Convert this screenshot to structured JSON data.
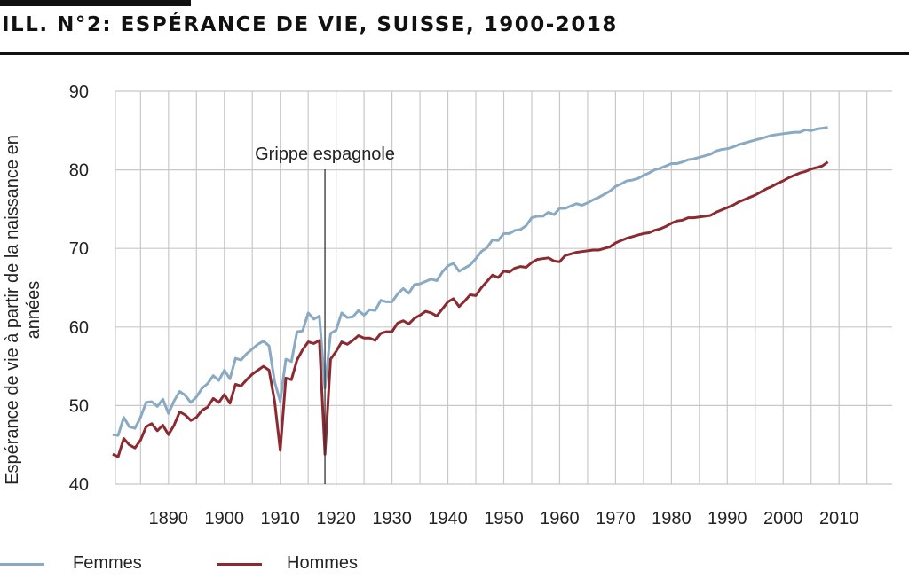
{
  "header": {
    "title": "ILL. N°2: ESPÉRANCE DE VIE, SUISSE, 1900-2018"
  },
  "colors": {
    "femmes": "#8aaac4",
    "hommes": "#8b2a31",
    "grid": "#c8c8c8",
    "annotation": "#333333"
  },
  "chart_data": {
    "type": "line",
    "title": "ILL. N°2: ESPÉRANCE DE VIE, SUISSE, 1900-2018",
    "xlabel": "",
    "ylabel": "Espérance de vie à partir de la naissance en années",
    "xlim": [
      1880.5,
      2019.5
    ],
    "ylim": [
      40,
      90
    ],
    "xticks": [
      1890,
      1900,
      1910,
      1920,
      1930,
      1940,
      1950,
      1960,
      1970,
      1980,
      1990,
      2000,
      2010
    ],
    "yticks": [
      40,
      50,
      60,
      70,
      80,
      90
    ],
    "grid": true,
    "legend_position": "bottom",
    "annotation": {
      "text": "Grippe espagnole",
      "x": 1918
    },
    "series": [
      {
        "name": "Femmes",
        "color": "#8aaac4",
        "points": [
          [
            1880,
            46.3
          ],
          [
            1881,
            46.2
          ],
          [
            1882,
            48.5
          ],
          [
            1883,
            47.3
          ],
          [
            1884,
            47.1
          ],
          [
            1885,
            48.5
          ],
          [
            1886,
            50.4
          ],
          [
            1887,
            50.5
          ],
          [
            1888,
            49.9
          ],
          [
            1889,
            50.8
          ],
          [
            1890,
            49.0
          ],
          [
            1891,
            50.6
          ],
          [
            1892,
            51.8
          ],
          [
            1893,
            51.3
          ],
          [
            1894,
            50.4
          ],
          [
            1895,
            51.1
          ],
          [
            1896,
            52.2
          ],
          [
            1897,
            52.8
          ],
          [
            1898,
            53.8
          ],
          [
            1899,
            53.2
          ],
          [
            1900,
            54.5
          ],
          [
            1901,
            53.4
          ],
          [
            1902,
            56.0
          ],
          [
            1903,
            55.8
          ],
          [
            1904,
            56.6
          ],
          [
            1905,
            57.2
          ],
          [
            1906,
            57.8
          ],
          [
            1907,
            58.2
          ],
          [
            1908,
            57.6
          ],
          [
            1909,
            53.0
          ],
          [
            1910,
            50.5
          ],
          [
            1911,
            55.9
          ],
          [
            1912,
            55.6
          ],
          [
            1913,
            59.4
          ],
          [
            1914,
            59.5
          ],
          [
            1915,
            61.8
          ],
          [
            1916,
            61.0
          ],
          [
            1917,
            61.4
          ],
          [
            1918,
            52.2
          ],
          [
            1919,
            59.2
          ],
          [
            1920,
            59.6
          ],
          [
            1921,
            61.8
          ],
          [
            1922,
            61.2
          ],
          [
            1923,
            61.3
          ],
          [
            1924,
            62.1
          ],
          [
            1925,
            61.5
          ],
          [
            1926,
            62.2
          ],
          [
            1927,
            62.1
          ],
          [
            1928,
            63.4
          ],
          [
            1929,
            63.2
          ],
          [
            1930,
            63.2
          ],
          [
            1931,
            64.2
          ],
          [
            1932,
            64.9
          ],
          [
            1933,
            64.3
          ],
          [
            1934,
            65.4
          ],
          [
            1935,
            65.5
          ],
          [
            1936,
            65.8
          ],
          [
            1937,
            66.1
          ],
          [
            1938,
            65.9
          ],
          [
            1939,
            67.0
          ],
          [
            1940,
            67.8
          ],
          [
            1941,
            68.1
          ],
          [
            1942,
            67.1
          ],
          [
            1943,
            67.5
          ],
          [
            1944,
            67.9
          ],
          [
            1945,
            68.7
          ],
          [
            1946,
            69.6
          ],
          [
            1947,
            70.1
          ],
          [
            1948,
            71.1
          ],
          [
            1949,
            71.0
          ],
          [
            1950,
            71.9
          ],
          [
            1951,
            71.9
          ],
          [
            1952,
            72.3
          ],
          [
            1953,
            72.4
          ],
          [
            1954,
            72.9
          ],
          [
            1955,
            73.9
          ],
          [
            1956,
            74.1
          ],
          [
            1957,
            74.1
          ],
          [
            1958,
            74.6
          ],
          [
            1959,
            74.3
          ],
          [
            1960,
            75.1
          ],
          [
            1961,
            75.1
          ],
          [
            1962,
            75.4
          ],
          [
            1963,
            75.7
          ],
          [
            1964,
            75.5
          ],
          [
            1965,
            75.8
          ],
          [
            1966,
            76.2
          ],
          [
            1967,
            76.5
          ],
          [
            1968,
            76.9
          ],
          [
            1969,
            77.3
          ],
          [
            1970,
            77.9
          ],
          [
            1971,
            78.2
          ],
          [
            1972,
            78.6
          ],
          [
            1973,
            78.7
          ],
          [
            1974,
            78.9
          ],
          [
            1975,
            79.3
          ],
          [
            1976,
            79.6
          ],
          [
            1977,
            80.0
          ],
          [
            1978,
            80.2
          ],
          [
            1979,
            80.5
          ],
          [
            1980,
            80.8
          ],
          [
            1981,
            80.8
          ],
          [
            1982,
            81.0
          ],
          [
            1983,
            81.3
          ],
          [
            1984,
            81.4
          ],
          [
            1985,
            81.6
          ],
          [
            1986,
            81.8
          ],
          [
            1987,
            82.0
          ],
          [
            1988,
            82.4
          ],
          [
            1989,
            82.6
          ],
          [
            1990,
            82.7
          ],
          [
            1991,
            82.9
          ],
          [
            1992,
            83.2
          ],
          [
            1993,
            83.4
          ],
          [
            1994,
            83.6
          ],
          [
            1995,
            83.8
          ],
          [
            1996,
            84.0
          ],
          [
            1997,
            84.2
          ],
          [
            1998,
            84.4
          ],
          [
            1999,
            84.5
          ],
          [
            2000,
            84.6
          ],
          [
            2001,
            84.7
          ],
          [
            2002,
            84.8
          ],
          [
            2003,
            84.8
          ],
          [
            2004,
            85.1
          ],
          [
            2005,
            85.0
          ],
          [
            2006,
            85.2
          ],
          [
            2007,
            85.3
          ],
          [
            2008,
            85.4
          ]
        ]
      },
      {
        "name": "Hommes",
        "color": "#8b2a31",
        "points": [
          [
            1880,
            43.8
          ],
          [
            1881,
            43.5
          ],
          [
            1882,
            45.8
          ],
          [
            1883,
            45.0
          ],
          [
            1884,
            44.6
          ],
          [
            1885,
            45.6
          ],
          [
            1886,
            47.3
          ],
          [
            1887,
            47.7
          ],
          [
            1888,
            46.8
          ],
          [
            1889,
            47.5
          ],
          [
            1890,
            46.3
          ],
          [
            1891,
            47.5
          ],
          [
            1892,
            49.2
          ],
          [
            1893,
            48.8
          ],
          [
            1894,
            48.1
          ],
          [
            1895,
            48.5
          ],
          [
            1896,
            49.4
          ],
          [
            1897,
            49.8
          ],
          [
            1898,
            50.9
          ],
          [
            1899,
            50.4
          ],
          [
            1900,
            51.4
          ],
          [
            1901,
            50.3
          ],
          [
            1902,
            52.7
          ],
          [
            1903,
            52.5
          ],
          [
            1904,
            53.3
          ],
          [
            1905,
            54.0
          ],
          [
            1906,
            54.5
          ],
          [
            1907,
            55.0
          ],
          [
            1908,
            54.5
          ],
          [
            1909,
            50.5
          ],
          [
            1910,
            44.3
          ],
          [
            1911,
            53.5
          ],
          [
            1912,
            53.3
          ],
          [
            1913,
            55.8
          ],
          [
            1914,
            57.1
          ],
          [
            1915,
            58.1
          ],
          [
            1916,
            57.9
          ],
          [
            1917,
            58.3
          ],
          [
            1918,
            43.8
          ],
          [
            1919,
            55.9
          ],
          [
            1920,
            56.9
          ],
          [
            1921,
            58.1
          ],
          [
            1922,
            57.8
          ],
          [
            1923,
            58.3
          ],
          [
            1924,
            58.9
          ],
          [
            1925,
            58.6
          ],
          [
            1926,
            58.6
          ],
          [
            1927,
            58.3
          ],
          [
            1928,
            59.2
          ],
          [
            1929,
            59.4
          ],
          [
            1930,
            59.4
          ],
          [
            1931,
            60.5
          ],
          [
            1932,
            60.8
          ],
          [
            1933,
            60.4
          ],
          [
            1934,
            61.1
          ],
          [
            1935,
            61.5
          ],
          [
            1936,
            62.0
          ],
          [
            1937,
            61.8
          ],
          [
            1938,
            61.4
          ],
          [
            1939,
            62.3
          ],
          [
            1940,
            63.2
          ],
          [
            1941,
            63.6
          ],
          [
            1942,
            62.6
          ],
          [
            1943,
            63.3
          ],
          [
            1944,
            64.1
          ],
          [
            1945,
            64.0
          ],
          [
            1946,
            65.0
          ],
          [
            1947,
            65.8
          ],
          [
            1948,
            66.6
          ],
          [
            1949,
            66.3
          ],
          [
            1950,
            67.1
          ],
          [
            1951,
            67.0
          ],
          [
            1952,
            67.5
          ],
          [
            1953,
            67.7
          ],
          [
            1954,
            67.6
          ],
          [
            1955,
            68.2
          ],
          [
            1956,
            68.6
          ],
          [
            1957,
            68.7
          ],
          [
            1958,
            68.8
          ],
          [
            1959,
            68.4
          ],
          [
            1960,
            68.3
          ],
          [
            1961,
            69.1
          ],
          [
            1962,
            69.3
          ],
          [
            1963,
            69.5
          ],
          [
            1964,
            69.6
          ],
          [
            1965,
            69.7
          ],
          [
            1966,
            69.8
          ],
          [
            1967,
            69.8
          ],
          [
            1968,
            70.0
          ],
          [
            1969,
            70.2
          ],
          [
            1970,
            70.7
          ],
          [
            1971,
            71.0
          ],
          [
            1972,
            71.3
          ],
          [
            1973,
            71.5
          ],
          [
            1974,
            71.7
          ],
          [
            1975,
            71.9
          ],
          [
            1976,
            72.0
          ],
          [
            1977,
            72.3
          ],
          [
            1978,
            72.5
          ],
          [
            1979,
            72.8
          ],
          [
            1980,
            73.2
          ],
          [
            1981,
            73.5
          ],
          [
            1982,
            73.6
          ],
          [
            1983,
            73.9
          ],
          [
            1984,
            73.9
          ],
          [
            1985,
            74.0
          ],
          [
            1986,
            74.1
          ],
          [
            1987,
            74.2
          ],
          [
            1988,
            74.6
          ],
          [
            1989,
            74.9
          ],
          [
            1990,
            75.2
          ],
          [
            1991,
            75.5
          ],
          [
            1992,
            75.9
          ],
          [
            1993,
            76.2
          ],
          [
            1994,
            76.5
          ],
          [
            1995,
            76.8
          ],
          [
            1996,
            77.2
          ],
          [
            1997,
            77.6
          ],
          [
            1998,
            77.9
          ],
          [
            1999,
            78.3
          ],
          [
            2000,
            78.6
          ],
          [
            2001,
            79.0
          ],
          [
            2002,
            79.3
          ],
          [
            2003,
            79.6
          ],
          [
            2004,
            79.8
          ],
          [
            2005,
            80.1
          ],
          [
            2006,
            80.3
          ],
          [
            2007,
            80.5
          ],
          [
            2008,
            81.0
          ]
        ]
      }
    ]
  }
}
